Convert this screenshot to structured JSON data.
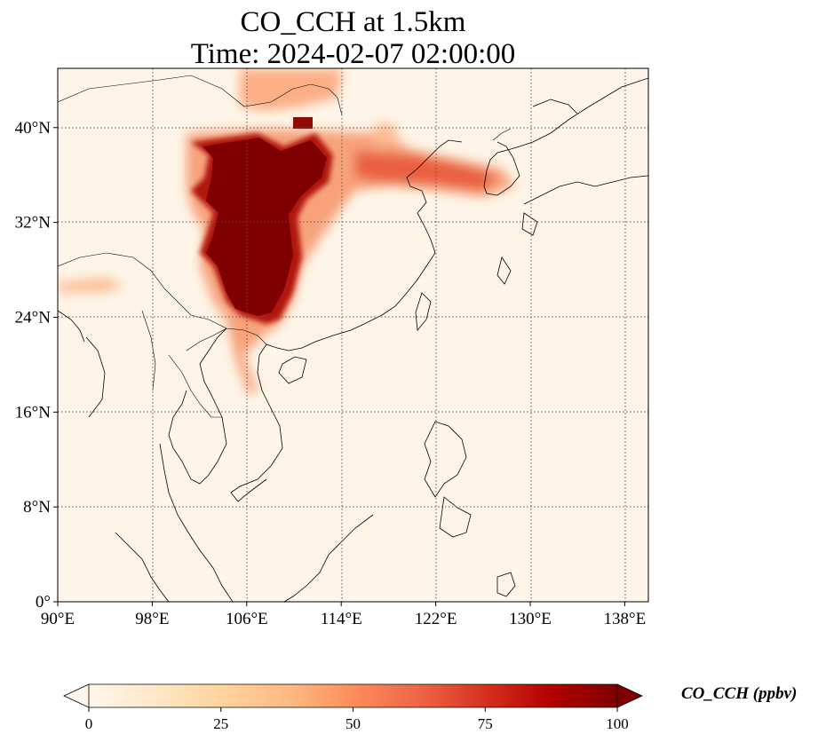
{
  "title": {
    "line1": "CO_CCH at 1.5km",
    "line2": "Time: 2024-02-07 02:00:00"
  },
  "map": {
    "projection": "PlateCarree",
    "lon_range": [
      90,
      140
    ],
    "lat_range": [
      0,
      45
    ],
    "x_ticks": [
      {
        "value": 90,
        "label": "90°E"
      },
      {
        "value": 98,
        "label": "98°E"
      },
      {
        "value": 106,
        "label": "106°E"
      },
      {
        "value": 114,
        "label": "114°E"
      },
      {
        "value": 122,
        "label": "122°E"
      },
      {
        "value": 130,
        "label": "130°E"
      },
      {
        "value": 138,
        "label": "138°E"
      }
    ],
    "y_ticks": [
      {
        "value": 0,
        "label": "0°"
      },
      {
        "value": 8,
        "label": "8°N"
      },
      {
        "value": 16,
        "label": "16°N"
      },
      {
        "value": 24,
        "label": "24°N"
      },
      {
        "value": 32,
        "label": "32°N"
      },
      {
        "value": 40,
        "label": "40°N"
      }
    ],
    "grid": "dotted"
  },
  "colorbar": {
    "label": "CO_CCH (ppbv)",
    "min": 0,
    "max": 100,
    "extend": "both",
    "colormap": "OrRd",
    "ticks": [
      {
        "value": 0,
        "label": "0"
      },
      {
        "value": 25,
        "label": "25"
      },
      {
        "value": 50,
        "label": "50"
      },
      {
        "value": 75,
        "label": "75"
      },
      {
        "value": 100,
        "label": "100"
      }
    ],
    "stops": [
      "#fff7ec",
      "#fee8c8",
      "#fdd49e",
      "#fdbb84",
      "#fc8d59",
      "#ef6548",
      "#d7301f",
      "#b30000",
      "#7f0000"
    ]
  }
}
